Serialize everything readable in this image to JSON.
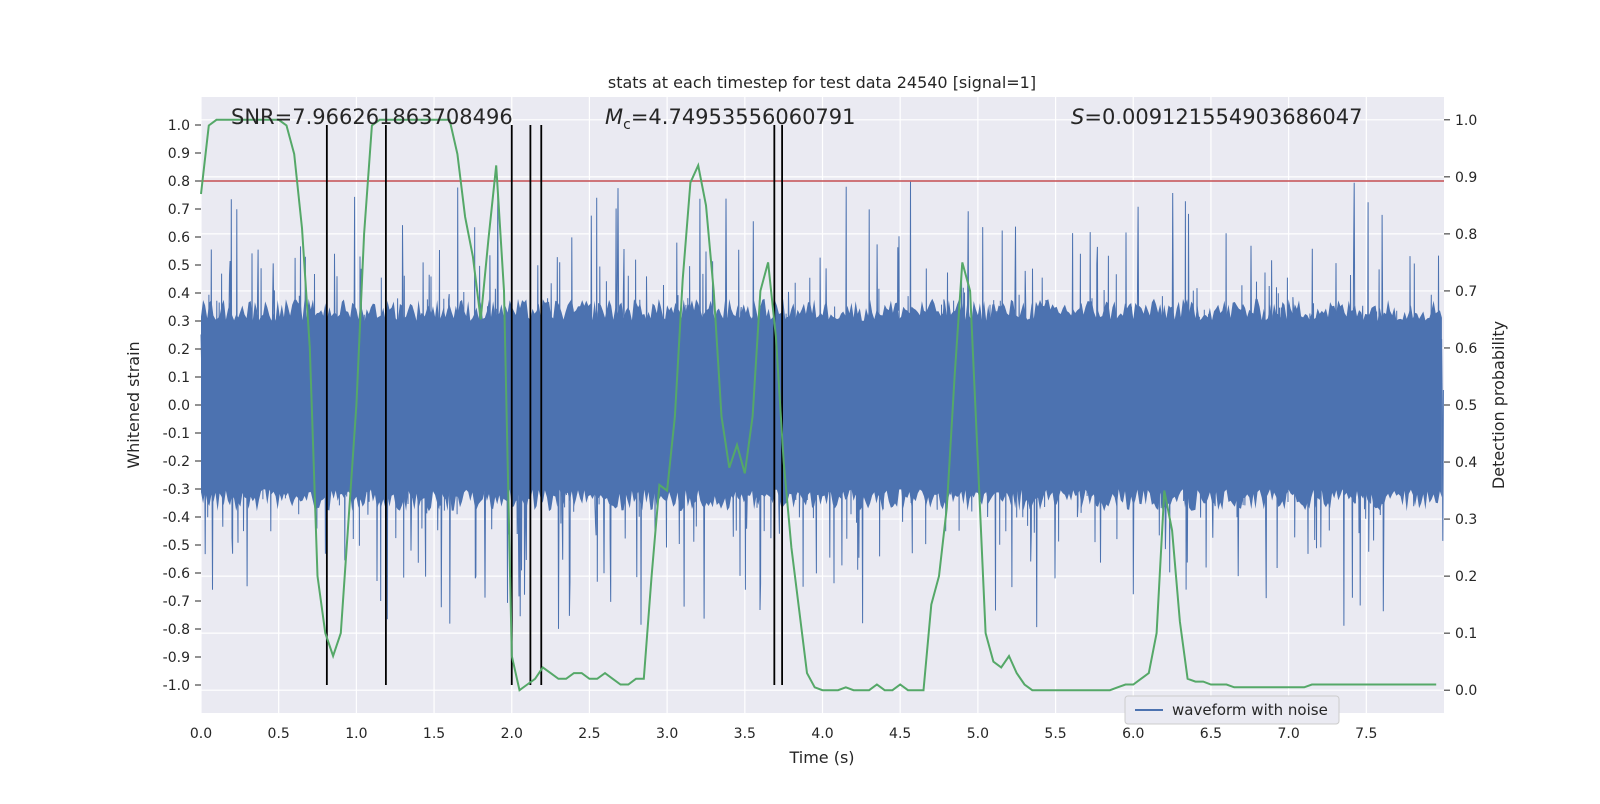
{
  "chart_data": {
    "type": "line",
    "title": "stats at each timestep for test data 24540 [signal=1]",
    "xlabel": "Time (s)",
    "ylabel": "Whitened strain",
    "y2label": "Detection probability",
    "xlim": [
      0.0,
      8.0
    ],
    "ylim": [
      -1.1,
      1.1
    ],
    "y2lim": [
      -0.04,
      1.04
    ],
    "x_ticks": [
      "0.0",
      "0.5",
      "1.0",
      "1.5",
      "2.0",
      "2.5",
      "3.0",
      "3.5",
      "4.0",
      "4.5",
      "5.0",
      "5.5",
      "6.0",
      "6.5",
      "7.0",
      "7.5"
    ],
    "y_ticks": [
      "1.0",
      "0.9",
      "0.8",
      "0.7",
      "0.6",
      "0.5",
      "0.4",
      "0.3",
      "0.2",
      "0.1",
      "0.0",
      "-0.1",
      "-0.2",
      "-0.3",
      "-0.4",
      "-0.5",
      "-0.6",
      "-0.7",
      "-0.8",
      "-0.9",
      "-1.0"
    ],
    "y2_ticks": [
      "1.0",
      "0.9",
      "0.8",
      "0.7",
      "0.6",
      "0.5",
      "0.4",
      "0.3",
      "0.2",
      "0.1",
      "0.0"
    ],
    "grid": true,
    "legend_position": "lower-right",
    "annotations": {
      "snr": "SNR=7.966261863708496",
      "mc": "=4.74953556060791",
      "mc_symbol": "M",
      "mc_sub": "c",
      "s": "=0.009121554903686047",
      "s_symbol": "S"
    },
    "series": [
      {
        "name": "waveform with noise",
        "kind": "noise",
        "axis": "left",
        "color": "#4c72b0",
        "sample_rate": 256,
        "duration": 8.0,
        "core_amplitude": 0.3,
        "max_peak": 0.88,
        "min_peak": -0.96
      },
      {
        "kind": "probability",
        "axis": "right",
        "color": "#55a868",
        "x": [
          0.0,
          0.05,
          0.1,
          0.15,
          0.2,
          0.25,
          0.3,
          0.35,
          0.4,
          0.45,
          0.5,
          0.55,
          0.6,
          0.65,
          0.7,
          0.75,
          0.8,
          0.85,
          0.9,
          0.95,
          1.0,
          1.05,
          1.1,
          1.15,
          1.2,
          1.25,
          1.3,
          1.35,
          1.4,
          1.45,
          1.5,
          1.55,
          1.6,
          1.65,
          1.7,
          1.75,
          1.8,
          1.85,
          1.9,
          1.95,
          2.0,
          2.05,
          2.1,
          2.15,
          2.2,
          2.25,
          2.3,
          2.35,
          2.4,
          2.45,
          2.5,
          2.55,
          2.6,
          2.65,
          2.7,
          2.75,
          2.8,
          2.85,
          2.9,
          2.95,
          3.0,
          3.05,
          3.1,
          3.15,
          3.2,
          3.25,
          3.3,
          3.35,
          3.4,
          3.45,
          3.5,
          3.55,
          3.6,
          3.65,
          3.7,
          3.75,
          3.8,
          3.85,
          3.9,
          3.95,
          4.0,
          4.05,
          4.1,
          4.15,
          4.2,
          4.25,
          4.3,
          4.35,
          4.4,
          4.45,
          4.5,
          4.55,
          4.6,
          4.65,
          4.7,
          4.75,
          4.8,
          4.85,
          4.9,
          4.95,
          5.0,
          5.05,
          5.1,
          5.15,
          5.2,
          5.25,
          5.3,
          5.35,
          5.4,
          5.45,
          5.5,
          5.55,
          5.6,
          5.65,
          5.7,
          5.75,
          5.8,
          5.85,
          5.9,
          5.95,
          6.0,
          6.05,
          6.1,
          6.15,
          6.2,
          6.25,
          6.3,
          6.35,
          6.4,
          6.45,
          6.5,
          6.55,
          6.6,
          6.65,
          6.7,
          6.75,
          6.8,
          6.85,
          6.9,
          6.95,
          7.0,
          7.05,
          7.1,
          7.15,
          7.2,
          7.25,
          7.3,
          7.35,
          7.4,
          7.45,
          7.5,
          7.55,
          7.6,
          7.65,
          7.7,
          7.75,
          7.8,
          7.85,
          7.9,
          7.95
        ],
        "y": [
          0.87,
          0.99,
          1.0,
          1.0,
          1.0,
          1.0,
          1.0,
          1.0,
          1.0,
          1.0,
          1.0,
          0.99,
          0.94,
          0.81,
          0.6,
          0.2,
          0.1,
          0.06,
          0.1,
          0.3,
          0.5,
          0.8,
          0.99,
          1.0,
          1.0,
          1.0,
          1.0,
          1.0,
          1.0,
          1.0,
          1.0,
          1.0,
          1.0,
          0.94,
          0.83,
          0.76,
          0.65,
          0.79,
          0.92,
          0.7,
          0.06,
          0.0,
          0.01,
          0.02,
          0.04,
          0.03,
          0.02,
          0.02,
          0.03,
          0.03,
          0.02,
          0.02,
          0.03,
          0.02,
          0.01,
          0.01,
          0.02,
          0.02,
          0.2,
          0.36,
          0.35,
          0.48,
          0.72,
          0.89,
          0.92,
          0.85,
          0.7,
          0.48,
          0.39,
          0.43,
          0.38,
          0.48,
          0.7,
          0.75,
          0.62,
          0.4,
          0.25,
          0.14,
          0.03,
          0.005,
          0.0,
          0.0,
          0.0,
          0.005,
          0.0,
          0.0,
          0.0,
          0.01,
          0.0,
          0.0,
          0.01,
          0.0,
          0.0,
          0.0,
          0.15,
          0.2,
          0.32,
          0.55,
          0.75,
          0.7,
          0.4,
          0.1,
          0.05,
          0.04,
          0.06,
          0.03,
          0.01,
          0.0,
          0.0,
          0.0,
          0.0,
          0.0,
          0.0,
          0.0,
          0.0,
          0.0,
          0.0,
          0.0,
          0.005,
          0.01,
          0.01,
          0.02,
          0.03,
          0.1,
          0.35,
          0.28,
          0.12,
          0.02,
          0.015,
          0.015,
          0.01,
          0.01,
          0.01,
          0.005,
          0.005,
          0.005,
          0.005,
          0.005,
          0.005,
          0.005,
          0.005,
          0.005,
          0.005,
          0.01,
          0.01,
          0.01,
          0.01,
          0.01,
          0.01,
          0.01,
          0.01,
          0.01,
          0.01,
          0.01,
          0.01,
          0.01,
          0.01,
          0.01,
          0.01,
          0.01
        ]
      },
      {
        "kind": "threshold",
        "axis": "left",
        "color": "#c44e52",
        "value": 0.8
      }
    ],
    "vertical_markers": {
      "color": "#000000",
      "x": [
        0.81,
        1.19,
        2.0,
        2.12,
        2.19,
        3.69,
        3.74
      ],
      "y_range": [
        -1.0,
        1.0
      ]
    }
  }
}
